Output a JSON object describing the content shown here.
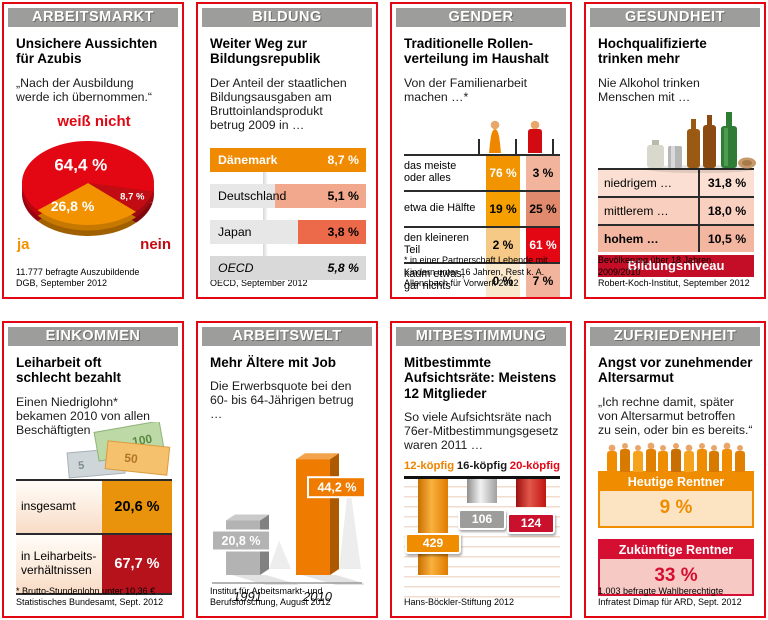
{
  "page": {
    "background": "#ffffff",
    "panel_border_color": "#e30613",
    "header_band_color": "#9d9d9c",
    "header_text_color": "#ffffff"
  },
  "panels": [
    {
      "id": "arbeitsmarkt",
      "header": "ARBEITSMARKT",
      "title": "Unsichere Aussichten\nfür Azubis",
      "subtitle": "„Nach der Ausbildung\nwerde ich übernommen.“",
      "footer": "11.777 befragte Auszubildende\nDGB, September 2012"
    },
    {
      "id": "bildung",
      "header": "BILDUNG",
      "title": "Weiter Weg zur\nBildungsrepublik",
      "subtitle": "Der Anteil der staatlichen\nBildungsausgaben am\nBruttoinlandsprodukt\nbetrug 2009 in …",
      "footer": "OECD, September 2012"
    },
    {
      "id": "gender",
      "header": "GENDER",
      "title": "Traditionelle Rollen-\nverteilung im Haushalt",
      "subtitle": "Von der Familienarbeit\nmachen …*",
      "footer": "* in einer Partnerschaft Lebende mit\nKindern unter 16 Jahren, Rest k. A.\nAllensbach für Vorwerk 2012"
    },
    {
      "id": "gesundheit",
      "header": "GESUNDHEIT",
      "title": "Hochqualifizierte\ntrinken mehr",
      "subtitle": "Nie Alkohol trinken\nMenschen mit …",
      "footer": "Bevölkerung über 18 Jahren, 2009/2010\nRobert-Koch-Institut, September 2012"
    },
    {
      "id": "einkommen",
      "header": "EINKOMMEN",
      "title": "Leiharbeit oft\nschlecht bezahlt",
      "subtitle": "Einen Niedriglohn*\nbekamen 2010 von allen\nBeschäftigten …",
      "footer": "* Brutto-Stundenlohn unter 10,36 €\nStatistisches Bundesamt, Sept. 2012"
    },
    {
      "id": "arbeitswelt",
      "header": "ARBEITSWELT",
      "title": "Mehr Ältere mit Job",
      "subtitle": "Die Erwerbsquote bei den\n60- bis 64-Jährigen betrug …",
      "footer": "Institut für Arbeitsmarkt- und\nBerufsforschung, August 2012"
    },
    {
      "id": "mitbestimmung",
      "header": "MITBESTIMMUNG",
      "title": "Mitbestimmte\nAufsichtsräte: Meistens\n12 Mitglieder",
      "subtitle": "So viele Aufsichtsräte nach\n76er-Mitbestimmungsgesetz\nwaren 2011 …",
      "footer": "Hans-Böckler-Stiftung 2012"
    },
    {
      "id": "zufriedenheit",
      "header": "ZUFRIEDENHEIT",
      "title": "Angst vor zunehmender\nAltersarmut",
      "subtitle": "„Ich rechne damit, später\nvon Altersarmut betroffen\nzu sein, oder bin es bereits.“",
      "footer": "1.003 befragte Wahlberechtigte\nInfratest Dimap für ARD, Sept. 2012"
    }
  ],
  "chart_data": [
    {
      "type": "pie",
      "title": "Unsichere Aussichten für Azubis",
      "top_label": "weiß nicht",
      "bottom_left_label": "ja",
      "bottom_right_label": "nein",
      "slices": [
        {
          "label": "weiß nicht",
          "value": 64.4,
          "display": "64,4 %",
          "color": "#e30613"
        },
        {
          "label": "nein",
          "value": 8.7,
          "display": "8,7 %",
          "color": "#c00c12"
        },
        {
          "label": "ja",
          "value": 26.8,
          "display": "26,8 %",
          "color": "#f39200"
        }
      ]
    },
    {
      "type": "hbar",
      "title": "Weiter Weg zur Bildungsrepublik",
      "unit": "% des BIP",
      "max": 8.7,
      "rows": [
        {
          "label": "Dänemark",
          "value": 8.7,
          "display": "8,7 %",
          "bar_pct": 100,
          "bar_color": "#f08a00",
          "row_bg": "#f08a00",
          "text_color": "#ffffff",
          "italic": false
        },
        {
          "label": "Deutschland",
          "value": 5.1,
          "display": "5,1 %",
          "bar_pct": 58.6,
          "bar_color": "#f2a88d",
          "row_bg": "#e7e7e7",
          "text_color": "#000000",
          "italic": false
        },
        {
          "label": "Japan",
          "value": 3.8,
          "display": "3,8 %",
          "bar_pct": 43.7,
          "bar_color": "#ec6a4a",
          "row_bg": "#e7e7e7",
          "text_color": "#000000",
          "italic": false
        },
        {
          "label": "OECD",
          "value": 5.8,
          "display": "5,8 %",
          "bar_pct": 0,
          "bar_color": null,
          "row_bg": "#d9d9d9",
          "text_color": "#000000",
          "italic": true
        }
      ]
    },
    {
      "type": "gender_table",
      "title": "Traditionelle Rollenverteilung im Haushalt",
      "column_icons": [
        "female-figure-icon",
        "male-figure-icon"
      ],
      "rows": [
        {
          "label": "das meiste\noder alles",
          "f": {
            "display": "76 %",
            "value": 76,
            "bg": "#f29400",
            "color": "#ffffff"
          },
          "m": {
            "display": "3 %",
            "value": 3,
            "bg": "#f2b49c",
            "color": "#000000"
          }
        },
        {
          "label": "etwa die Hälfte",
          "f": {
            "display": "19 %",
            "value": 19,
            "bg": "#f5a000",
            "color": "#000000"
          },
          "m": {
            "display": "25 %",
            "value": 25,
            "bg": "#e28a6e",
            "color": "#000000"
          }
        },
        {
          "label": "den kleineren\nTeil",
          "f": {
            "display": "2 %",
            "value": 2,
            "bg": "#f6c987",
            "color": "#000000"
          },
          "m": {
            "display": "61 %",
            "value": 61,
            "bg": "#e30613",
            "color": "#ffffff"
          }
        },
        {
          "label": "kaum etwas,\ngar nichts",
          "f": {
            "display": "0 %",
            "value": 0,
            "bg": "#fae8cd",
            "color": "#000000"
          },
          "m": {
            "display": "7 %",
            "value": 7,
            "bg": "#f2b49c",
            "color": "#000000"
          }
        }
      ]
    },
    {
      "type": "stat_list",
      "title": "Hochqualifizierte trinken mehr",
      "rows": [
        {
          "label": "niedrigem …",
          "value": 31.8,
          "display": "31,8 %",
          "bg": "#fbdfd2",
          "bold_label": false
        },
        {
          "label": "mittlerem …",
          "value": 18.0,
          "display": "18,0 %",
          "bg": "#f9d0c0",
          "bold_label": false
        },
        {
          "label": "hohem …",
          "value": 10.5,
          "display": "10,5 %",
          "bg": "#f3b6a1",
          "bold_label": true
        }
      ],
      "band": {
        "label": "Bildungsniveau",
        "bg": "#c40e27",
        "color": "#ffffff"
      }
    },
    {
      "type": "stat_cells",
      "title": "Leiharbeit oft schlecht bezahlt",
      "rows": [
        {
          "label": "insgesamt",
          "value": 20.6,
          "display": "20,6 %",
          "cell_bg": "#e9930c",
          "cell_color": "#000000",
          "height": 52
        },
        {
          "label": "in Leiharbeits-\nverhältnissen",
          "value": 67.7,
          "display": "67,7 %",
          "cell_bg": "#b5121c",
          "cell_color": "#ffffff",
          "height": 58
        }
      ]
    },
    {
      "type": "bar3d",
      "title": "Mehr Ältere mit Job",
      "categories": [
        "1991",
        "2010"
      ],
      "values": [
        20.8,
        44.2
      ],
      "displays": [
        "20,8 %",
        "44,2 %"
      ],
      "colors": [
        "#b3b3b3",
        "#ef7c00"
      ],
      "ylim": [
        0,
        50
      ]
    },
    {
      "type": "hanging_bar",
      "title": "Mitbestimmte Aufsichtsräte",
      "legend": [
        {
          "label": "12-köpfig",
          "color": "#ef8300"
        },
        {
          "label": "16-köpfig",
          "color": "#1a1a1a"
        },
        {
          "label": "20-köpfig",
          "color": "#e30613"
        }
      ],
      "values": [
        429,
        106,
        124
      ],
      "displays": [
        "429",
        "106",
        "124"
      ],
      "bar_gradients": [
        [
          "#c96f00",
          "#f9b13e",
          "#e07b00"
        ],
        [
          "#8f8f8f",
          "#f2f2f2",
          "#9f9f9f"
        ],
        [
          "#9c0f10",
          "#e2574a",
          "#c01511"
        ]
      ],
      "badge_colors": [
        "#f08c00",
        "#9d9d9c",
        "#c9102c"
      ]
    },
    {
      "type": "stat_cards",
      "title": "Angst vor zunehmender Altersarmut",
      "cards": [
        {
          "label": "Heutige Rentner",
          "value": 9,
          "display": "9 %",
          "header_bg": "#ef8c00",
          "body_bg": "#fce4c3",
          "value_color": "#ef8c00"
        },
        {
          "label": "Zukünftige Rentner",
          "value": 33,
          "display": "33 %",
          "header_bg": "#d50f31",
          "body_bg": "#f7c9c5",
          "value_color": "#d50f31"
        }
      ]
    }
  ],
  "illustrations": {
    "money_notes": [
      "100",
      "50",
      "5"
    ],
    "bottle_icons": [
      "flask-icon",
      "can-icon",
      "beer-bottle-icon",
      "beer-bottle-icon",
      "wine-bottle-icon",
      "cork-icon"
    ],
    "crowd_icon": "person-figure-icon"
  }
}
